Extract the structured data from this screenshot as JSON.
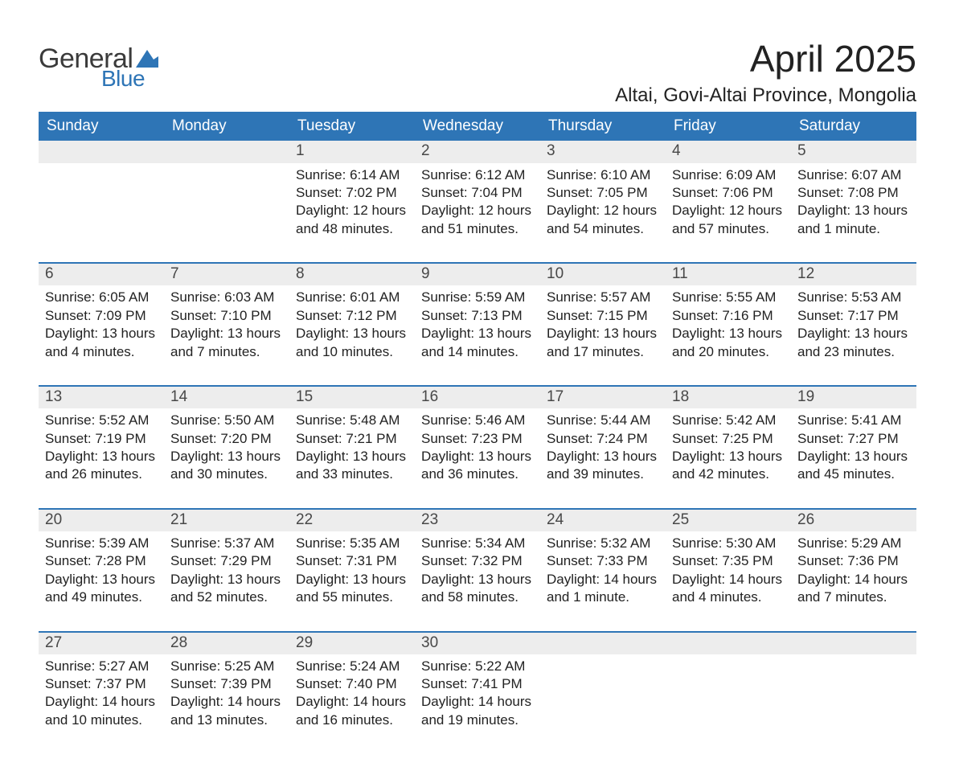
{
  "brand": {
    "word1": "General",
    "word2": "Blue",
    "flag_color": "#2e75b6",
    "word1_color": "#3b3b3b",
    "word2_color": "#2e75b6"
  },
  "title": {
    "month_year": "April 2025",
    "location": "Altai, Govi-Altai Province, Mongolia"
  },
  "colors": {
    "header_bg": "#2e75b6",
    "header_text": "#ffffff",
    "daynum_bg": "#ededed",
    "daynum_text": "#484848",
    "body_text": "#222222",
    "row_divider": "#2e75b6",
    "page_bg": "#ffffff"
  },
  "typography": {
    "title_fontsize": 46,
    "location_fontsize": 24,
    "dayheader_fontsize": 19,
    "daynum_fontsize": 19,
    "body_fontsize": 17,
    "font_family": "Segoe UI"
  },
  "day_headers": [
    "Sunday",
    "Monday",
    "Tuesday",
    "Wednesday",
    "Thursday",
    "Friday",
    "Saturday"
  ],
  "weeks": [
    [
      null,
      null,
      {
        "num": "1",
        "sunrise": "Sunrise: 6:14 AM",
        "sunset": "Sunset: 7:02 PM",
        "daylight": "Daylight: 12 hours and 48 minutes."
      },
      {
        "num": "2",
        "sunrise": "Sunrise: 6:12 AM",
        "sunset": "Sunset: 7:04 PM",
        "daylight": "Daylight: 12 hours and 51 minutes."
      },
      {
        "num": "3",
        "sunrise": "Sunrise: 6:10 AM",
        "sunset": "Sunset: 7:05 PM",
        "daylight": "Daylight: 12 hours and 54 minutes."
      },
      {
        "num": "4",
        "sunrise": "Sunrise: 6:09 AM",
        "sunset": "Sunset: 7:06 PM",
        "daylight": "Daylight: 12 hours and 57 minutes."
      },
      {
        "num": "5",
        "sunrise": "Sunrise: 6:07 AM",
        "sunset": "Sunset: 7:08 PM",
        "daylight": "Daylight: 13 hours and 1 minute."
      }
    ],
    [
      {
        "num": "6",
        "sunrise": "Sunrise: 6:05 AM",
        "sunset": "Sunset: 7:09 PM",
        "daylight": "Daylight: 13 hours and 4 minutes."
      },
      {
        "num": "7",
        "sunrise": "Sunrise: 6:03 AM",
        "sunset": "Sunset: 7:10 PM",
        "daylight": "Daylight: 13 hours and 7 minutes."
      },
      {
        "num": "8",
        "sunrise": "Sunrise: 6:01 AM",
        "sunset": "Sunset: 7:12 PM",
        "daylight": "Daylight: 13 hours and 10 minutes."
      },
      {
        "num": "9",
        "sunrise": "Sunrise: 5:59 AM",
        "sunset": "Sunset: 7:13 PM",
        "daylight": "Daylight: 13 hours and 14 minutes."
      },
      {
        "num": "10",
        "sunrise": "Sunrise: 5:57 AM",
        "sunset": "Sunset: 7:15 PM",
        "daylight": "Daylight: 13 hours and 17 minutes."
      },
      {
        "num": "11",
        "sunrise": "Sunrise: 5:55 AM",
        "sunset": "Sunset: 7:16 PM",
        "daylight": "Daylight: 13 hours and 20 minutes."
      },
      {
        "num": "12",
        "sunrise": "Sunrise: 5:53 AM",
        "sunset": "Sunset: 7:17 PM",
        "daylight": "Daylight: 13 hours and 23 minutes."
      }
    ],
    [
      {
        "num": "13",
        "sunrise": "Sunrise: 5:52 AM",
        "sunset": "Sunset: 7:19 PM",
        "daylight": "Daylight: 13 hours and 26 minutes."
      },
      {
        "num": "14",
        "sunrise": "Sunrise: 5:50 AM",
        "sunset": "Sunset: 7:20 PM",
        "daylight": "Daylight: 13 hours and 30 minutes."
      },
      {
        "num": "15",
        "sunrise": "Sunrise: 5:48 AM",
        "sunset": "Sunset: 7:21 PM",
        "daylight": "Daylight: 13 hours and 33 minutes."
      },
      {
        "num": "16",
        "sunrise": "Sunrise: 5:46 AM",
        "sunset": "Sunset: 7:23 PM",
        "daylight": "Daylight: 13 hours and 36 minutes."
      },
      {
        "num": "17",
        "sunrise": "Sunrise: 5:44 AM",
        "sunset": "Sunset: 7:24 PM",
        "daylight": "Daylight: 13 hours and 39 minutes."
      },
      {
        "num": "18",
        "sunrise": "Sunrise: 5:42 AM",
        "sunset": "Sunset: 7:25 PM",
        "daylight": "Daylight: 13 hours and 42 minutes."
      },
      {
        "num": "19",
        "sunrise": "Sunrise: 5:41 AM",
        "sunset": "Sunset: 7:27 PM",
        "daylight": "Daylight: 13 hours and 45 minutes."
      }
    ],
    [
      {
        "num": "20",
        "sunrise": "Sunrise: 5:39 AM",
        "sunset": "Sunset: 7:28 PM",
        "daylight": "Daylight: 13 hours and 49 minutes."
      },
      {
        "num": "21",
        "sunrise": "Sunrise: 5:37 AM",
        "sunset": "Sunset: 7:29 PM",
        "daylight": "Daylight: 13 hours and 52 minutes."
      },
      {
        "num": "22",
        "sunrise": "Sunrise: 5:35 AM",
        "sunset": "Sunset: 7:31 PM",
        "daylight": "Daylight: 13 hours and 55 minutes."
      },
      {
        "num": "23",
        "sunrise": "Sunrise: 5:34 AM",
        "sunset": "Sunset: 7:32 PM",
        "daylight": "Daylight: 13 hours and 58 minutes."
      },
      {
        "num": "24",
        "sunrise": "Sunrise: 5:32 AM",
        "sunset": "Sunset: 7:33 PM",
        "daylight": "Daylight: 14 hours and 1 minute."
      },
      {
        "num": "25",
        "sunrise": "Sunrise: 5:30 AM",
        "sunset": "Sunset: 7:35 PM",
        "daylight": "Daylight: 14 hours and 4 minutes."
      },
      {
        "num": "26",
        "sunrise": "Sunrise: 5:29 AM",
        "sunset": "Sunset: 7:36 PM",
        "daylight": "Daylight: 14 hours and 7 minutes."
      }
    ],
    [
      {
        "num": "27",
        "sunrise": "Sunrise: 5:27 AM",
        "sunset": "Sunset: 7:37 PM",
        "daylight": "Daylight: 14 hours and 10 minutes."
      },
      {
        "num": "28",
        "sunrise": "Sunrise: 5:25 AM",
        "sunset": "Sunset: 7:39 PM",
        "daylight": "Daylight: 14 hours and 13 minutes."
      },
      {
        "num": "29",
        "sunrise": "Sunrise: 5:24 AM",
        "sunset": "Sunset: 7:40 PM",
        "daylight": "Daylight: 14 hours and 16 minutes."
      },
      {
        "num": "30",
        "sunrise": "Sunrise: 5:22 AM",
        "sunset": "Sunset: 7:41 PM",
        "daylight": "Daylight: 14 hours and 19 minutes."
      },
      null,
      null,
      null
    ]
  ]
}
